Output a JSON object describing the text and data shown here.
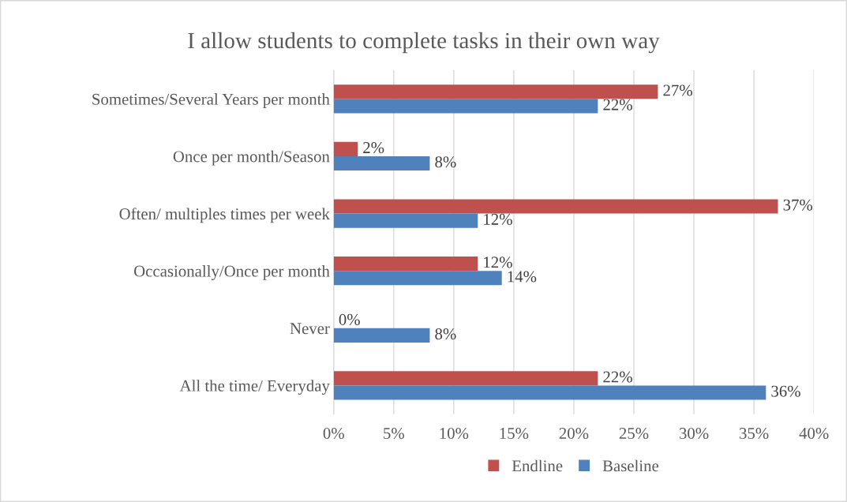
{
  "chart_data": {
    "type": "bar",
    "orientation": "horizontal",
    "title": "I allow students to complete tasks in their own way",
    "categories": [
      "Sometimes/Several Years per month",
      "Once per month/Season",
      "Often/ multiples times per week",
      "Occasionally/Once per month",
      "Never",
      "All the time/ Everyday"
    ],
    "series": [
      {
        "name": "Endline",
        "color": "#c0504d",
        "values": [
          27,
          2,
          37,
          12,
          0,
          22
        ],
        "value_labels": [
          "27%",
          "2%",
          "37%",
          "12%",
          "0%",
          "22%"
        ]
      },
      {
        "name": "Baseline",
        "color": "#4f81bd",
        "values": [
          22,
          8,
          12,
          14,
          8,
          36
        ],
        "value_labels": [
          "22%",
          "8%",
          "12%",
          "14%",
          "8%",
          "36%"
        ]
      }
    ],
    "xlim": [
      0,
      40
    ],
    "xticks": [
      {
        "value": 0,
        "label": "0%"
      },
      {
        "value": 5,
        "label": "5%"
      },
      {
        "value": 10,
        "label": "10%"
      },
      {
        "value": 15,
        "label": "15%"
      },
      {
        "value": 20,
        "label": "20%"
      },
      {
        "value": 25,
        "label": "25%"
      },
      {
        "value": 30,
        "label": "30%"
      },
      {
        "value": 35,
        "label": "35%"
      },
      {
        "value": 40,
        "label": "40%"
      }
    ],
    "grid": "x",
    "legend": "bottom"
  }
}
